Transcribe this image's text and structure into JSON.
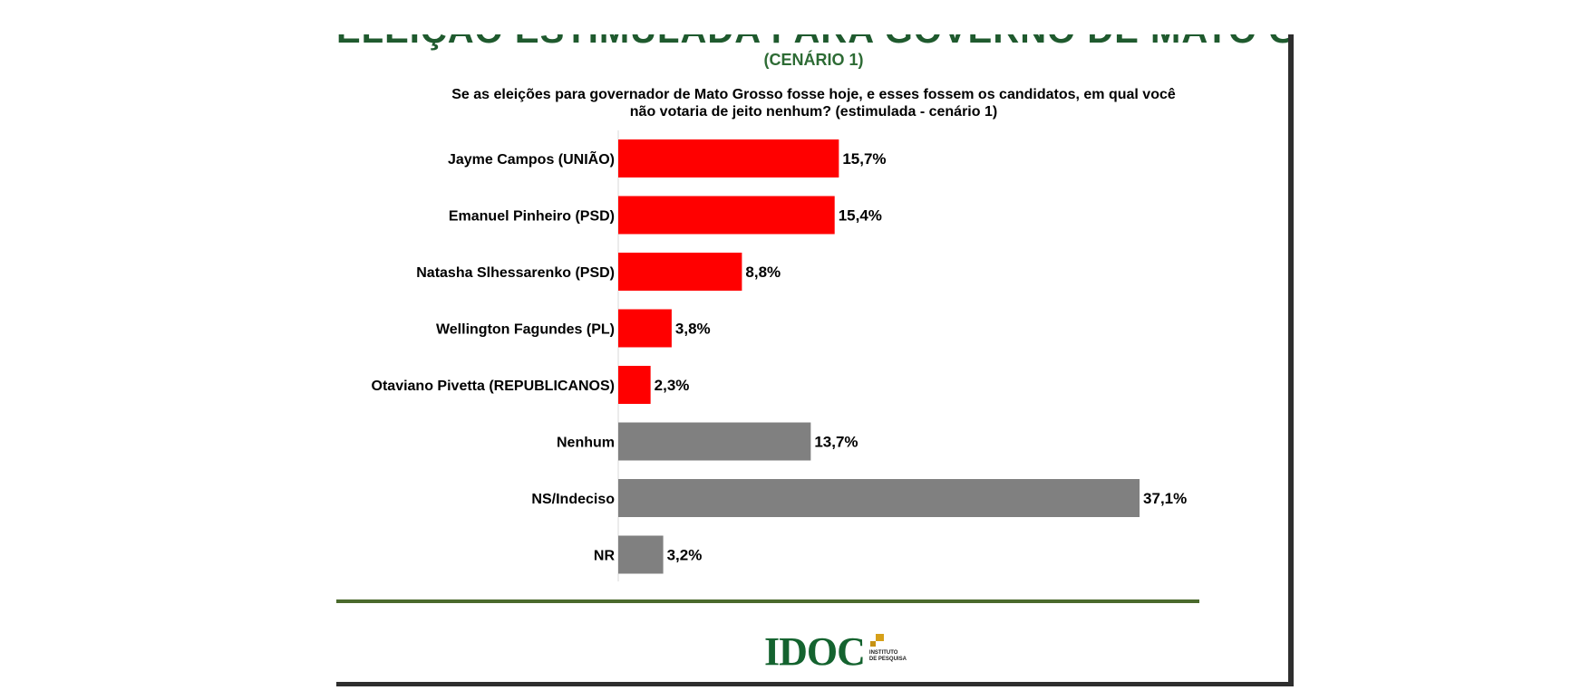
{
  "title": "ELEIÇÃO ESTIMULADA PARA GOVERNO DE MATO GROSSO",
  "subtitle": "(CENÁRIO 1)",
  "question": {
    "line1": "Se as eleições para governador de Mato Grosso fosse hoje, e esses fossem os candidatos, em qual você",
    "line2": "não votaria de jeito nenhum? (estimulada - cenário 1)"
  },
  "chart_data": {
    "type": "bar",
    "orientation": "horizontal",
    "categories": [
      "Jayme Campos (UNIÃO)",
      "Emanuel Pinheiro (PSD)",
      "Natasha Slhessarenko (PSD)",
      "Wellington Fagundes (PL)",
      "Otaviano Pivetta (REPUBLICANOS)",
      "Nenhum",
      "NS/Indeciso",
      "NR"
    ],
    "values": [
      15.7,
      15.4,
      8.8,
      3.8,
      2.3,
      13.7,
      37.1,
      3.2
    ],
    "value_labels": [
      "15,7%",
      "15,4%",
      "8,8%",
      "3,8%",
      "2,3%",
      "13,7%",
      "37,1%",
      "3,2%"
    ],
    "bar_colors": [
      "#ff0000",
      "#ff0000",
      "#ff0000",
      "#ff0000",
      "#ff0000",
      "#808080",
      "#808080",
      "#808080"
    ],
    "xlim": [
      0,
      40
    ],
    "grid": false,
    "legend": "none"
  },
  "logo": {
    "text": "IDOC",
    "tagline": "INSTITUTO\nDE PESQUISA"
  },
  "colors": {
    "title_green": "#1f5a2e",
    "divider_green": "#4a6a2c",
    "candidate_bar": "#ff0000",
    "other_bar": "#808080"
  }
}
